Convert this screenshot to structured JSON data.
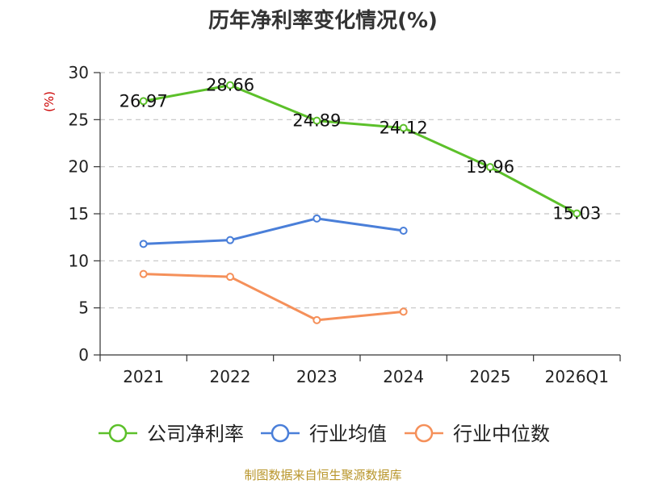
{
  "chart_data": {
    "type": "line",
    "title": "历年净利率变化情况(%)",
    "xlabel": "",
    "ylabel": "(%)",
    "categories": [
      "2021",
      "2022",
      "2023",
      "2024",
      "2025",
      "2026Q1"
    ],
    "ylim": [
      0,
      30
    ],
    "yticks": [
      0,
      5,
      10,
      15,
      20,
      25,
      30
    ],
    "grid": true,
    "legend_position": "bottom",
    "series": [
      {
        "name": "公司净利率",
        "color": "#5cc02a",
        "values": [
          26.97,
          28.66,
          24.89,
          24.12,
          19.96,
          15.03
        ],
        "labels": [
          "26.97",
          "28.66",
          "24.89",
          "24.12",
          "19.96",
          "15.03"
        ]
      },
      {
        "name": "行业均值",
        "color": "#4a7fd9",
        "values": [
          11.8,
          12.2,
          14.5,
          13.2,
          null,
          null
        ]
      },
      {
        "name": "行业中位数",
        "color": "#f5905a",
        "values": [
          8.6,
          8.3,
          3.7,
          4.6,
          null,
          null
        ]
      }
    ],
    "source": "制图数据来自恒生聚源数据库"
  }
}
